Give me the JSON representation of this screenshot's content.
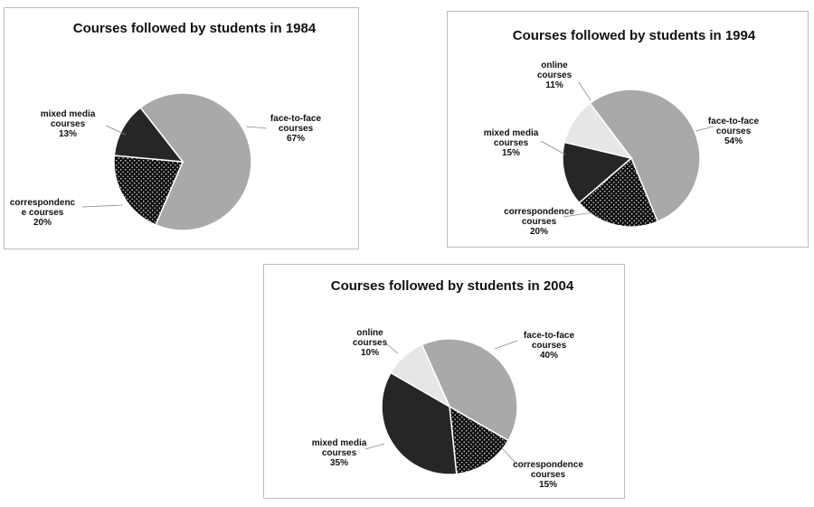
{
  "chart_data": [
    {
      "type": "pie",
      "title": "Courses followed by students in 1984",
      "slices": [
        {
          "label": [
            "face-to-face",
            "courses"
          ],
          "value": 67,
          "display": "67%",
          "color": "#a9a9a9"
        },
        {
          "label": [
            "correspondenc",
            "e courses"
          ],
          "value": 20,
          "display": "20%",
          "color": "#111111",
          "pattern": "dots"
        },
        {
          "label": [
            "mixed media",
            "courses"
          ],
          "value": 13,
          "display": "13%",
          "color": "#262626"
        }
      ]
    },
    {
      "type": "pie",
      "title": "Courses followed by students in 1994",
      "slices": [
        {
          "label": [
            "face-to-face",
            "courses"
          ],
          "value": 54,
          "display": "54%",
          "color": "#a9a9a9"
        },
        {
          "label": [
            "correspondence",
            "courses"
          ],
          "value": 20,
          "display": "20%",
          "color": "#111111",
          "pattern": "dots"
        },
        {
          "label": [
            "mixed media",
            "courses"
          ],
          "value": 15,
          "display": "15%",
          "color": "#262626"
        },
        {
          "label": [
            "online",
            "courses"
          ],
          "value": 11,
          "display": "11%",
          "color": "#e6e6e6"
        }
      ]
    },
    {
      "type": "pie",
      "title": "Courses followed by students in 2004",
      "slices": [
        {
          "label": [
            "face-to-face",
            "courses"
          ],
          "value": 40,
          "display": "40%",
          "color": "#a9a9a9"
        },
        {
          "label": [
            "correspondence",
            "courses"
          ],
          "value": 15,
          "display": "15%",
          "color": "#111111",
          "pattern": "dots"
        },
        {
          "label": [
            "mixed media",
            "courses"
          ],
          "value": 35,
          "display": "35%",
          "color": "#262626"
        },
        {
          "label": [
            "online",
            "courses"
          ],
          "value": 10,
          "display": "10%",
          "color": "#e6e6e6"
        }
      ]
    }
  ]
}
